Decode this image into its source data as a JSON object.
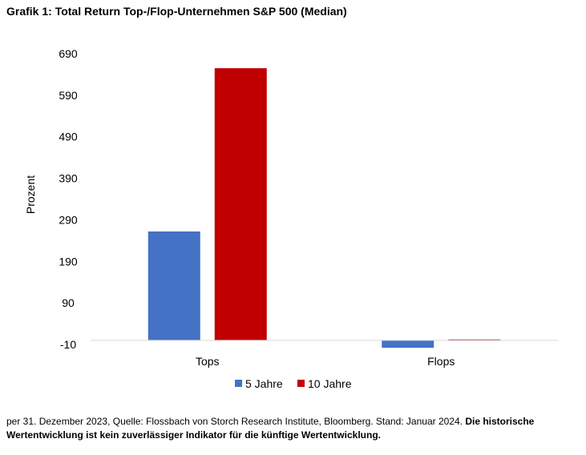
{
  "title": "Grafik 1: Total Return Top-/Flop-Unternehmen S&P 500 (Median)",
  "footnote": {
    "normal": "per 31. Dezember 2023, Quelle: Flossbach von Storch Research Institute, Bloomberg. Stand: Januar 2024. ",
    "bold": "Die historische Wertentwicklung ist kein zuverlässiger Indikator für die künftige Wertentwicklung."
  },
  "chart_data": {
    "type": "bar",
    "title": "Grafik 1: Total Return Top-/Flop-Unternehmen S&P 500 (Median)",
    "xlabel": "",
    "ylabel": "Prozent",
    "categories": [
      "Tops",
      "Flops"
    ],
    "series": [
      {
        "name": "5 Jahre",
        "color": "#4472C4",
        "values": [
          262,
          -18
        ]
      },
      {
        "name": "10 Jahre",
        "color": "#C00000",
        "values": [
          655,
          2
        ]
      }
    ],
    "yticks": [
      -10,
      90,
      190,
      290,
      390,
      490,
      590,
      690
    ],
    "ylim": [
      -10,
      690
    ],
    "grid": false,
    "legend_position": "bottom-center"
  }
}
